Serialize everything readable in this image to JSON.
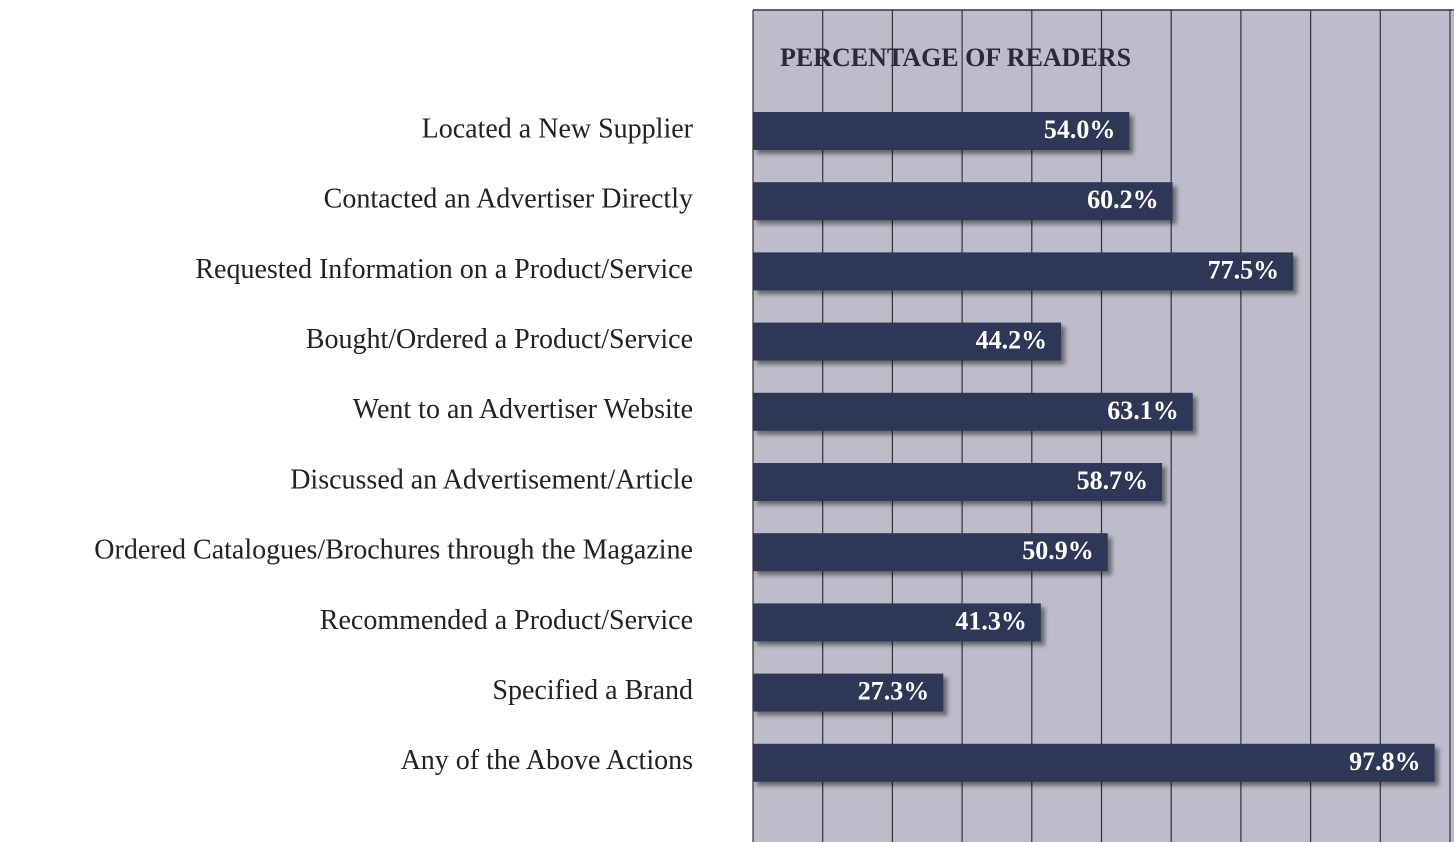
{
  "chart_data": {
    "type": "barh",
    "title": "PERCENTAGE OF READERS",
    "categories": [
      "Located a New Supplier",
      "Contacted an Advertiser Directly",
      "Requested Information on a Product/Service",
      "Bought/Ordered a Product/Service",
      "Went to an Advertiser Website",
      "Discussed an Advertisement/Article",
      "Ordered Catalogues/Brochures through the Magazine",
      "Recommended a Product/Service",
      "Specified a Brand",
      "Any of the Above Actions"
    ],
    "values": [
      54.0,
      60.2,
      77.5,
      44.2,
      63.1,
      58.7,
      50.9,
      41.3,
      27.3,
      97.8
    ],
    "value_labels": [
      "54.0%",
      "60.2%",
      "77.5%",
      "44.2%",
      "63.1%",
      "58.7%",
      "50.9%",
      "41.3%",
      "27.3%",
      "97.8%"
    ],
    "color": "#2d3757",
    "xlim": [
      0,
      100
    ],
    "xticks": [
      0,
      10,
      20,
      30,
      40,
      50,
      60,
      70,
      80,
      90,
      100
    ],
    "grid": true
  }
}
